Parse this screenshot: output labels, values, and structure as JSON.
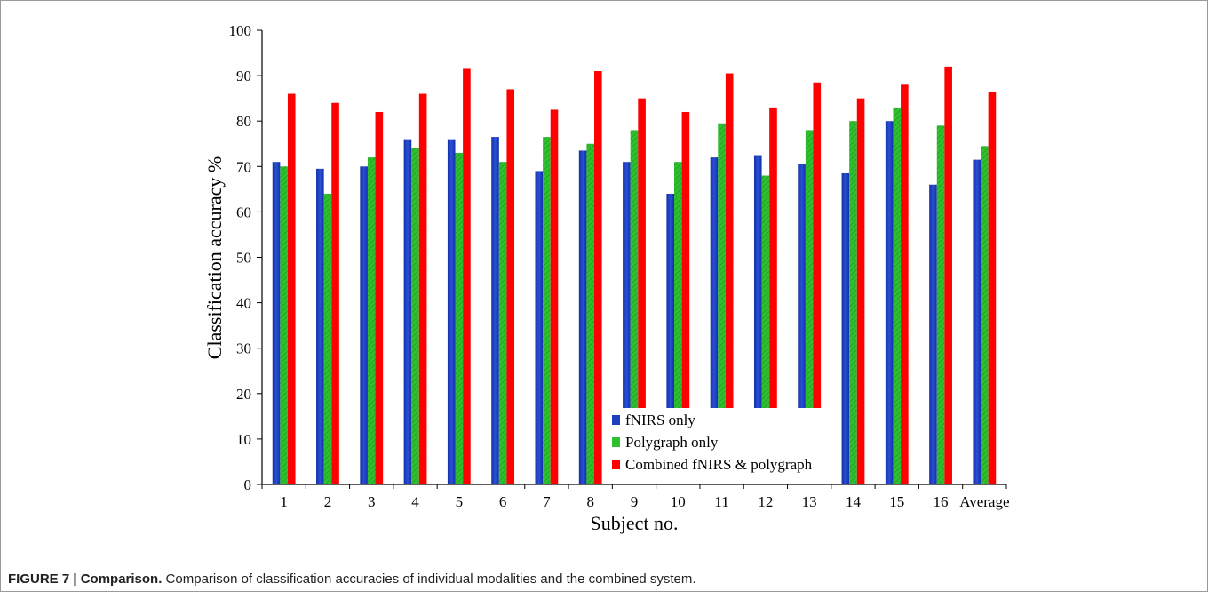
{
  "caption": {
    "label": "FIGURE 7 | Comparison.",
    "text": " Comparison of classification accuracies of individual modalities and the combined system."
  },
  "chart_data": {
    "type": "bar",
    "xlabel": "Subject no.",
    "ylabel": "Classification accuracy %",
    "ylim": [
      0,
      100
    ],
    "yticks": [
      0,
      10,
      20,
      30,
      40,
      50,
      60,
      70,
      80,
      90,
      100
    ],
    "grid": false,
    "legend_position": "bottom-center",
    "categories": [
      "1",
      "2",
      "3",
      "4",
      "5",
      "6",
      "7",
      "8",
      "9",
      "10",
      "11",
      "12",
      "13",
      "14",
      "15",
      "16",
      "Average"
    ],
    "series": [
      {
        "name": "fNIRS only",
        "color": "#1f3fbf",
        "values": [
          71,
          69.5,
          70,
          76,
          76,
          76.5,
          69,
          73.5,
          71,
          64,
          72,
          72.5,
          70.5,
          68.5,
          80,
          66,
          71.5
        ]
      },
      {
        "name": "Polygraph only",
        "color": "#2fc030",
        "values": [
          70,
          64,
          72,
          74,
          73,
          71,
          76.5,
          75,
          78,
          71,
          79.5,
          68,
          78,
          80,
          83,
          79,
          74.5
        ]
      },
      {
        "name": "Combined fNIRS & polygraph",
        "color": "#ff0000",
        "values": [
          86,
          84,
          82,
          86,
          91.5,
          87,
          82.5,
          91,
          85,
          82,
          90.5,
          83,
          88.5,
          85,
          88,
          92,
          86.5
        ]
      }
    ]
  }
}
